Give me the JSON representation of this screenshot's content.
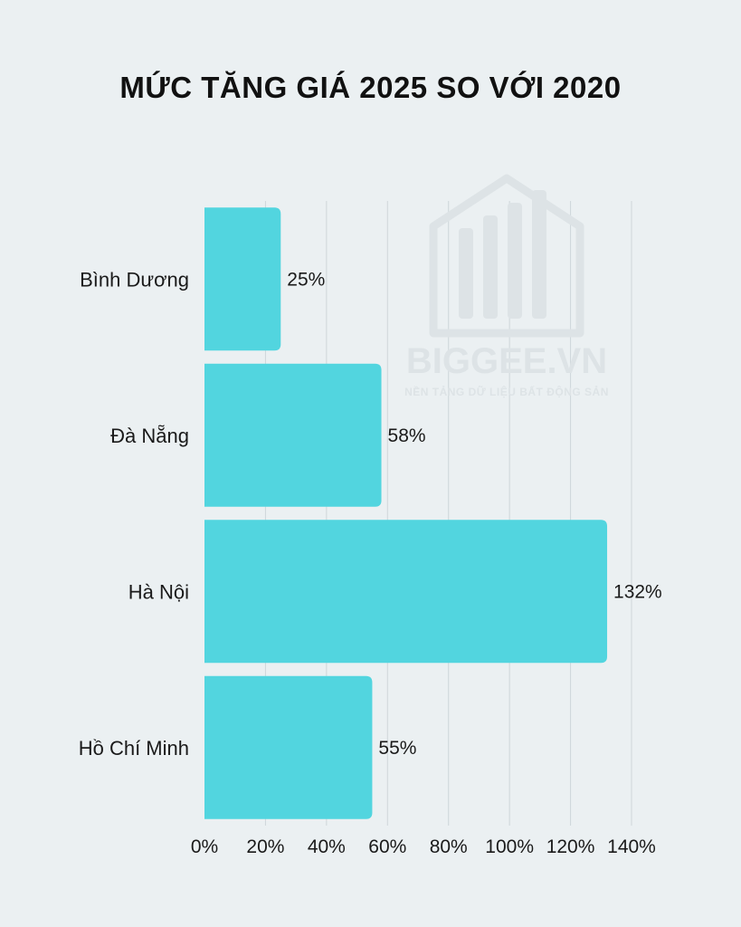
{
  "chart_data": {
    "type": "bar",
    "orientation": "horizontal",
    "title": "MỨC TĂNG GIÁ 2025 SO VỚI 2020",
    "categories": [
      "Bình Dương",
      "Đà Nẵng",
      "Hà Nội",
      "Hồ Chí Minh"
    ],
    "values": [
      25,
      58,
      132,
      55
    ],
    "value_labels": [
      "25%",
      "58%",
      "132%",
      "55%"
    ],
    "xlim": [
      0,
      140
    ],
    "xticks": [
      0,
      20,
      40,
      60,
      80,
      100,
      120,
      140
    ],
    "xtick_labels": [
      "0%",
      "20%",
      "40%",
      "60%",
      "80%",
      "100%",
      "120%",
      "140%"
    ],
    "grid": "vertical",
    "bar_color": "#52d5df",
    "grid_color": "#cfd6da",
    "background_color": "#ebf0f2"
  },
  "watermark": {
    "brand": "BIGGEE.VN",
    "tagline": "NỀN TẢNG DỮ LIỆU BẤT ĐỘNG SẢN",
    "icon": "house-bar-chart-icon",
    "color": "#d9e0e3"
  }
}
